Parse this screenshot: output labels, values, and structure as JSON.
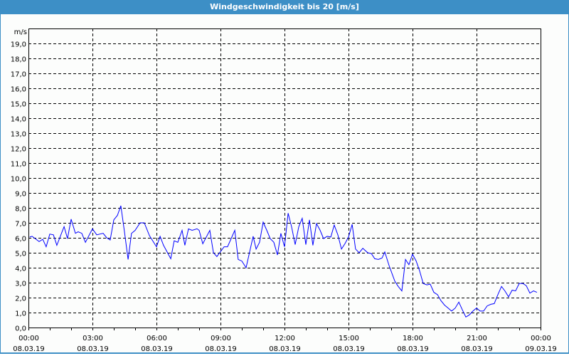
{
  "title": "Windgeschwindigkeit bis 20 [m/s]",
  "chart_data": {
    "type": "line",
    "title": "Windgeschwindigkeit bis 20 [m/s]",
    "ylabel": "m/s",
    "xlabel": "",
    "ylim": [
      0,
      20
    ],
    "xlim_hours": [
      0,
      24
    ],
    "grid": true,
    "y_ticks": [
      "0,0",
      "1,0",
      "2,0",
      "3,0",
      "4,0",
      "5,0",
      "6,0",
      "7,0",
      "8,0",
      "9,0",
      "10,0",
      "11,0",
      "12,0",
      "13,0",
      "14,0",
      "15,0",
      "16,0",
      "17,0",
      "18,0",
      "19,0"
    ],
    "x_ticks": [
      {
        "time": "00:00",
        "date": "08.03.19"
      },
      {
        "time": "03:00",
        "date": "08.03.19"
      },
      {
        "time": "06:00",
        "date": "08.03.19"
      },
      {
        "time": "09:00",
        "date": "08.03.19"
      },
      {
        "time": "12:00",
        "date": "08.03.19"
      },
      {
        "time": "15:00",
        "date": "08.03.19"
      },
      {
        "time": "18:00",
        "date": "08.03.19"
      },
      {
        "time": "21:00",
        "date": "08.03.19"
      },
      {
        "time": "00:00",
        "date": "09.03.19"
      }
    ],
    "series": [
      {
        "name": "Windgeschwindigkeit",
        "color": "#0000ff",
        "x_hours": [
          0.06,
          0.17,
          0.5,
          0.67,
          0.83,
          1.0,
          1.17,
          1.33,
          1.67,
          1.83,
          2.0,
          2.2,
          2.33,
          2.5,
          2.67,
          3.0,
          3.2,
          3.5,
          3.67,
          3.83,
          4.0,
          4.17,
          4.33,
          4.5,
          4.67,
          4.83,
          5.0,
          5.23,
          5.43,
          5.67,
          6.0,
          6.17,
          6.33,
          6.67,
          6.83,
          7.0,
          7.2,
          7.33,
          7.5,
          7.67,
          7.9,
          8.0,
          8.17,
          8.5,
          8.67,
          8.83,
          9.17,
          9.33,
          9.67,
          9.83,
          10.0,
          10.2,
          10.53,
          10.67,
          10.83,
          11.0,
          11.17,
          11.33,
          11.5,
          11.67,
          11.83,
          12.0,
          12.17,
          12.33,
          12.5,
          12.67,
          12.83,
          13.0,
          13.17,
          13.33,
          13.5,
          13.67,
          13.83,
          14.0,
          14.17,
          14.33,
          14.5,
          14.67,
          14.83,
          15.0,
          15.17,
          15.33,
          15.5,
          15.67,
          15.9,
          16.07,
          16.23,
          16.4,
          16.57,
          16.7,
          16.9,
          17.17,
          17.33,
          17.5,
          17.67,
          17.83,
          18.0,
          18.17,
          18.33,
          18.5,
          18.67,
          18.83,
          19.0,
          19.17,
          19.33,
          19.5,
          19.67,
          19.83,
          20.0,
          20.17,
          20.33,
          20.5,
          20.67,
          20.83,
          21.0,
          21.17,
          21.33,
          21.5,
          21.67,
          21.83,
          22.0,
          22.17,
          22.33,
          22.5,
          22.67,
          22.83,
          23.0,
          23.17,
          23.33,
          23.5,
          23.67,
          23.83
        ],
        "values": [
          6.05,
          6.1,
          5.75,
          5.9,
          5.4,
          6.25,
          6.2,
          5.5,
          6.75,
          5.95,
          7.25,
          6.3,
          6.4,
          6.3,
          5.7,
          6.6,
          6.2,
          6.3,
          6.0,
          5.85,
          7.2,
          7.5,
          8.15,
          6.4,
          4.55,
          6.3,
          6.5,
          7.0,
          7.0,
          6.15,
          5.4,
          6.1,
          5.5,
          4.6,
          5.8,
          5.7,
          6.5,
          5.5,
          6.6,
          6.5,
          6.6,
          6.5,
          5.6,
          6.5,
          5.0,
          4.75,
          5.4,
          5.4,
          6.5,
          4.55,
          4.45,
          4.0,
          6.1,
          5.25,
          5.7,
          7.05,
          6.5,
          5.95,
          5.7,
          4.85,
          6.3,
          5.4,
          7.65,
          6.75,
          5.55,
          6.75,
          7.3,
          5.55,
          7.2,
          5.5,
          6.95,
          6.5,
          5.95,
          6.1,
          6.05,
          6.85,
          6.2,
          5.25,
          5.6,
          6.05,
          6.9,
          5.25,
          5.0,
          5.3,
          5.0,
          4.95,
          4.6,
          4.55,
          4.65,
          5.05,
          4.15,
          3.1,
          2.75,
          2.45,
          4.55,
          4.2,
          4.9,
          4.45,
          3.8,
          2.95,
          2.85,
          2.9,
          2.35,
          2.2,
          1.8,
          1.5,
          1.3,
          1.1,
          1.3,
          1.7,
          1.2,
          0.7,
          0.85,
          1.1,
          1.3,
          1.1,
          1.1,
          1.45,
          1.55,
          1.6,
          2.2,
          2.75,
          2.45,
          2.05,
          2.5,
          2.45,
          2.95,
          2.95,
          2.8,
          2.3,
          2.45,
          2.35
        ]
      }
    ]
  }
}
